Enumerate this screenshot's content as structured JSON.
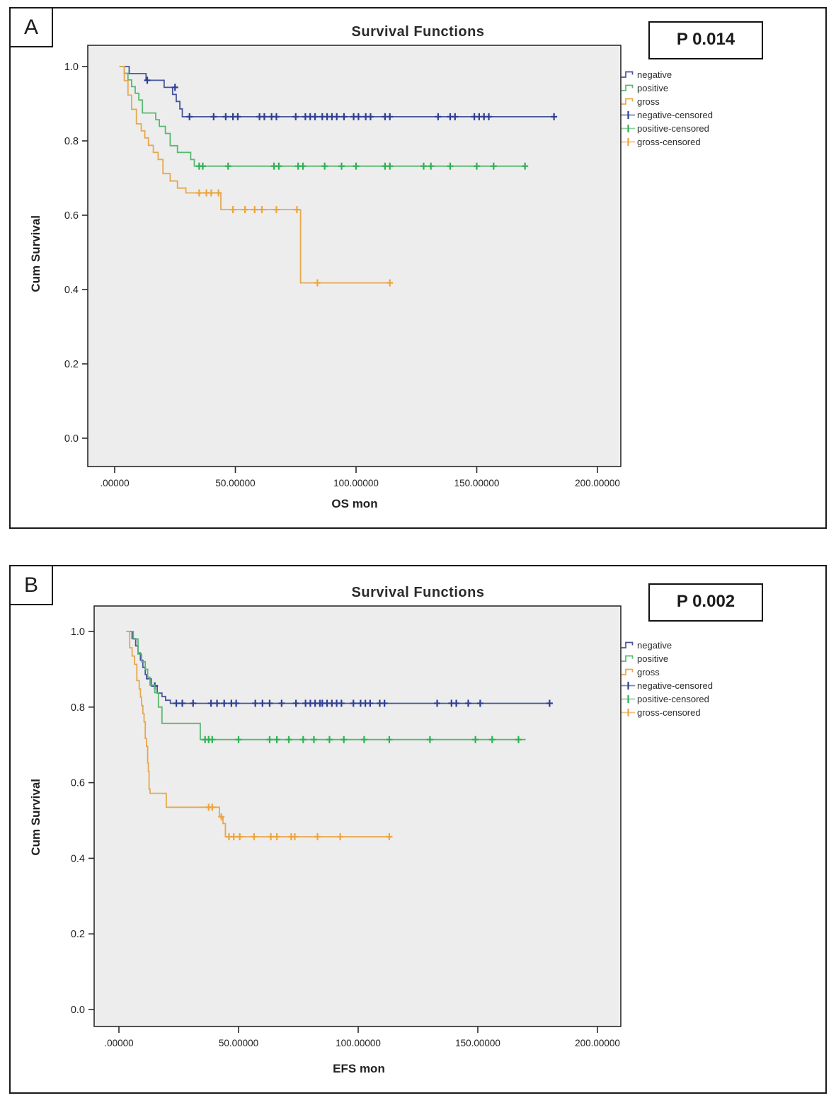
{
  "figure": {
    "background": "#ffffff",
    "plot_background": "#ededed",
    "frame_color": "#1a1a1a"
  },
  "chart_data": [
    {
      "type": "line",
      "variant": "kaplan-meier-step",
      "panel": "A",
      "title": "Survival Functions",
      "p_label": "P 0.014",
      "xlabel": "OS mon",
      "ylabel": "Cum Survival",
      "xlim": [
        -11,
        209
      ],
      "ylim": [
        -0.08,
        1.06
      ],
      "grid": "off",
      "legend_position": "right",
      "xticks": [
        {
          "v": 0,
          "label": ".00000"
        },
        {
          "v": 50,
          "label": "50.00000"
        },
        {
          "v": 100,
          "label": "100.00000"
        },
        {
          "v": 150,
          "label": "150.00000"
        },
        {
          "v": 200,
          "label": "200.00000"
        }
      ],
      "yticks": [
        {
          "v": 1.0,
          "label": "1.0"
        },
        {
          "v": 0.8,
          "label": "0.8"
        },
        {
          "v": 0.6,
          "label": "0.6"
        },
        {
          "v": 0.4,
          "label": "0.4"
        },
        {
          "v": 0.2,
          "label": "0.2"
        },
        {
          "v": 0.0,
          "label": "0.0"
        }
      ],
      "series": [
        {
          "name": "negative",
          "color": "#47549b",
          "censor_color": "#2e3f92",
          "steps": [
            [
              2,
              1.0
            ],
            [
              6,
              0.981
            ],
            [
              13,
              0.963
            ],
            [
              20.5,
              0.944
            ],
            [
              24,
              0.925
            ],
            [
              25.5,
              0.906
            ],
            [
              27,
              0.886
            ],
            [
              28,
              0.865
            ],
            [
              182,
              0.865
            ]
          ],
          "censored": [
            [
              13.5,
              0.963
            ],
            [
              25,
              0.944
            ],
            [
              31,
              0.865
            ],
            [
              41,
              0.865
            ],
            [
              46,
              0.865
            ],
            [
              49,
              0.865
            ],
            [
              51,
              0.865
            ],
            [
              60,
              0.865
            ],
            [
              62,
              0.865
            ],
            [
              65,
              0.865
            ],
            [
              67,
              0.865
            ],
            [
              75,
              0.865
            ],
            [
              79,
              0.865
            ],
            [
              81,
              0.865
            ],
            [
              83,
              0.865
            ],
            [
              86,
              0.865
            ],
            [
              88,
              0.865
            ],
            [
              90,
              0.865
            ],
            [
              92,
              0.865
            ],
            [
              95,
              0.865
            ],
            [
              99,
              0.865
            ],
            [
              101,
              0.865
            ],
            [
              104,
              0.865
            ],
            [
              106,
              0.865
            ],
            [
              112,
              0.865
            ],
            [
              114,
              0.865
            ],
            [
              134,
              0.865
            ],
            [
              139,
              0.865
            ],
            [
              141,
              0.865
            ],
            [
              149,
              0.865
            ],
            [
              151,
              0.865
            ],
            [
              153,
              0.865
            ],
            [
              155,
              0.865
            ],
            [
              182,
              0.865
            ]
          ]
        },
        {
          "name": "positive",
          "color": "#57b96e",
          "censor_color": "#2eb155",
          "steps": [
            [
              2,
              1.0
            ],
            [
              4,
              0.982
            ],
            [
              5.5,
              0.964
            ],
            [
              7,
              0.946
            ],
            [
              8.5,
              0.928
            ],
            [
              10,
              0.91
            ],
            [
              11.5,
              0.875
            ],
            [
              17,
              0.857
            ],
            [
              18.5,
              0.839
            ],
            [
              21,
              0.82
            ],
            [
              23,
              0.787
            ],
            [
              26,
              0.769
            ],
            [
              31.5,
              0.75
            ],
            [
              33,
              0.732
            ],
            [
              170,
              0.732
            ]
          ],
          "censored": [
            [
              35,
              0.732
            ],
            [
              36.5,
              0.732
            ],
            [
              47,
              0.732
            ],
            [
              66,
              0.732
            ],
            [
              68,
              0.732
            ],
            [
              76,
              0.732
            ],
            [
              78,
              0.732
            ],
            [
              87,
              0.732
            ],
            [
              94,
              0.732
            ],
            [
              100,
              0.732
            ],
            [
              112,
              0.732
            ],
            [
              114,
              0.732
            ],
            [
              128,
              0.732
            ],
            [
              131,
              0.732
            ],
            [
              139,
              0.732
            ],
            [
              150,
              0.732
            ],
            [
              157,
              0.732
            ],
            [
              170,
              0.732
            ]
          ]
        },
        {
          "name": "gross",
          "color": "#e6a84e",
          "censor_color": "#efa43a",
          "steps": [
            [
              2,
              1.0
            ],
            [
              4,
              0.962
            ],
            [
              5.5,
              0.923
            ],
            [
              7,
              0.885
            ],
            [
              9,
              0.846
            ],
            [
              11,
              0.827
            ],
            [
              12.5,
              0.808
            ],
            [
              14,
              0.788
            ],
            [
              16,
              0.769
            ],
            [
              18,
              0.75
            ],
            [
              20,
              0.712
            ],
            [
              23,
              0.692
            ],
            [
              26,
              0.673
            ],
            [
              29.5,
              0.66
            ],
            [
              44,
              0.615
            ],
            [
              77,
              0.418
            ],
            [
              115,
              0.418
            ]
          ],
          "censored": [
            [
              35,
              0.66
            ],
            [
              38,
              0.66
            ],
            [
              40,
              0.66
            ],
            [
              43,
              0.66
            ],
            [
              49,
              0.615
            ],
            [
              54,
              0.615
            ],
            [
              58,
              0.615
            ],
            [
              61,
              0.615
            ],
            [
              67,
              0.615
            ],
            [
              75.5,
              0.615
            ],
            [
              84,
              0.418
            ],
            [
              114,
              0.418
            ]
          ]
        }
      ],
      "legend": [
        {
          "label": "negative",
          "kind": "line",
          "color": "#47549b"
        },
        {
          "label": "positive",
          "kind": "line",
          "color": "#57b96e"
        },
        {
          "label": "gross",
          "kind": "line",
          "color": "#e6a84e"
        },
        {
          "label": "negative-censored",
          "kind": "censor",
          "color": "#7b84b8",
          "plus": "#2e3f92"
        },
        {
          "label": "positive-censored",
          "kind": "censor",
          "color": "#8fd0a0",
          "plus": "#2eb155"
        },
        {
          "label": "gross-censored",
          "kind": "censor",
          "color": "#f0c488",
          "plus": "#efa43a"
        }
      ]
    },
    {
      "type": "line",
      "variant": "kaplan-meier-step",
      "panel": "B",
      "title": "Survival Functions",
      "p_label": "P 0.002",
      "xlabel": "EFS mon",
      "ylabel": "Cum Survival",
      "xlim": [
        -11,
        209
      ],
      "ylim": [
        -0.08,
        1.06
      ],
      "grid": "off",
      "legend_position": "right",
      "xticks": [
        {
          "v": 0,
          "label": ".00000"
        },
        {
          "v": 50,
          "label": "50.00000"
        },
        {
          "v": 100,
          "label": "100.00000"
        },
        {
          "v": 150,
          "label": "150.00000"
        },
        {
          "v": 200,
          "label": "200.00000"
        }
      ],
      "yticks": [
        {
          "v": 1.0,
          "label": "1.0"
        },
        {
          "v": 0.8,
          "label": "0.8"
        },
        {
          "v": 0.6,
          "label": "0.6"
        },
        {
          "v": 0.4,
          "label": "0.4"
        },
        {
          "v": 0.2,
          "label": "0.2"
        },
        {
          "v": 0.0,
          "label": "0.0"
        }
      ],
      "series": [
        {
          "name": "negative",
          "color": "#47549b",
          "censor_color": "#2e3f92",
          "steps": [
            [
              3.5,
              1.0
            ],
            [
              5.5,
              0.981
            ],
            [
              7,
              0.962
            ],
            [
              8,
              0.943
            ],
            [
              9,
              0.924
            ],
            [
              10,
              0.905
            ],
            [
              11,
              0.886
            ],
            [
              11.5,
              0.875
            ],
            [
              13.5,
              0.856
            ],
            [
              16,
              0.837
            ],
            [
              18,
              0.828
            ],
            [
              19.5,
              0.818
            ],
            [
              21.5,
              0.81
            ],
            [
              180,
              0.81
            ]
          ],
          "censored": [
            [
              15,
              0.856
            ],
            [
              24,
              0.81
            ],
            [
              26.5,
              0.81
            ],
            [
              31,
              0.81
            ],
            [
              38.5,
              0.81
            ],
            [
              41,
              0.81
            ],
            [
              44,
              0.81
            ],
            [
              47,
              0.81
            ],
            [
              49,
              0.81
            ],
            [
              57,
              0.81
            ],
            [
              60,
              0.81
            ],
            [
              63,
              0.81
            ],
            [
              68,
              0.81
            ],
            [
              74,
              0.81
            ],
            [
              78,
              0.81
            ],
            [
              80,
              0.81
            ],
            [
              82,
              0.81
            ],
            [
              84,
              0.81
            ],
            [
              85,
              0.81
            ],
            [
              87,
              0.81
            ],
            [
              89,
              0.81
            ],
            [
              91,
              0.81
            ],
            [
              93,
              0.81
            ],
            [
              98,
              0.81
            ],
            [
              101,
              0.81
            ],
            [
              103,
              0.81
            ],
            [
              105,
              0.81
            ],
            [
              109,
              0.81
            ],
            [
              111,
              0.81
            ],
            [
              133,
              0.81
            ],
            [
              139,
              0.81
            ],
            [
              141,
              0.81
            ],
            [
              146,
              0.81
            ],
            [
              151,
              0.81
            ],
            [
              180,
              0.81
            ]
          ]
        },
        {
          "name": "positive",
          "color": "#57b96e",
          "censor_color": "#2eb155",
          "steps": [
            [
              3.5,
              1.0
            ],
            [
              6,
              0.98
            ],
            [
              8,
              0.94
            ],
            [
              9.5,
              0.92
            ],
            [
              11,
              0.9
            ],
            [
              12,
              0.879
            ],
            [
              13,
              0.858
            ],
            [
              15,
              0.838
            ],
            [
              16.5,
              0.8
            ],
            [
              18,
              0.757
            ],
            [
              34,
              0.714
            ],
            [
              170,
              0.714
            ]
          ],
          "censored": [
            [
              36,
              0.714
            ],
            [
              37.5,
              0.714
            ],
            [
              39,
              0.714
            ],
            [
              50,
              0.714
            ],
            [
              63,
              0.714
            ],
            [
              66,
              0.714
            ],
            [
              71,
              0.714
            ],
            [
              77,
              0.714
            ],
            [
              81.5,
              0.714
            ],
            [
              88,
              0.714
            ],
            [
              94,
              0.714
            ],
            [
              102.5,
              0.714
            ],
            [
              113,
              0.714
            ],
            [
              130,
              0.714
            ],
            [
              149,
              0.714
            ],
            [
              156,
              0.714
            ],
            [
              167,
              0.714
            ]
          ]
        },
        {
          "name": "gross",
          "color": "#e6a84e",
          "censor_color": "#efa43a",
          "steps": [
            [
              3,
              1.0
            ],
            [
              4.5,
              0.957
            ],
            [
              5.5,
              0.935
            ],
            [
              6.5,
              0.913
            ],
            [
              7.5,
              0.87
            ],
            [
              8.5,
              0.848
            ],
            [
              9,
              0.826
            ],
            [
              9.5,
              0.804
            ],
            [
              10,
              0.783
            ],
            [
              10.5,
              0.761
            ],
            [
              11,
              0.717
            ],
            [
              11.5,
              0.696
            ],
            [
              12,
              0.652
            ],
            [
              12.3,
              0.63
            ],
            [
              12.6,
              0.583
            ],
            [
              13,
              0.572
            ],
            [
              19.8,
              0.535
            ],
            [
              42,
              0.51
            ],
            [
              43.5,
              0.492
            ],
            [
              44.5,
              0.457
            ],
            [
              113,
              0.457
            ]
          ],
          "censored": [
            [
              37.5,
              0.535
            ],
            [
              39,
              0.535
            ],
            [
              42.8,
              0.51
            ],
            [
              46,
              0.457
            ],
            [
              48,
              0.457
            ],
            [
              50.5,
              0.457
            ],
            [
              56.5,
              0.457
            ],
            [
              63.5,
              0.457
            ],
            [
              66,
              0.457
            ],
            [
              72,
              0.457
            ],
            [
              73.5,
              0.457
            ],
            [
              83,
              0.457
            ],
            [
              92.5,
              0.457
            ],
            [
              113,
              0.457
            ]
          ]
        }
      ],
      "legend": [
        {
          "label": "negative",
          "kind": "line",
          "color": "#47549b"
        },
        {
          "label": "positive",
          "kind": "line",
          "color": "#57b96e"
        },
        {
          "label": "gross",
          "kind": "line",
          "color": "#e6a84e"
        },
        {
          "label": "negative-censored",
          "kind": "censor",
          "color": "#7b84b8",
          "plus": "#2e3f92"
        },
        {
          "label": "positive-censored",
          "kind": "censor",
          "color": "#8fd0a0",
          "plus": "#2eb155"
        },
        {
          "label": "gross-censored",
          "kind": "censor",
          "color": "#f0c488",
          "plus": "#efa43a"
        }
      ]
    }
  ]
}
